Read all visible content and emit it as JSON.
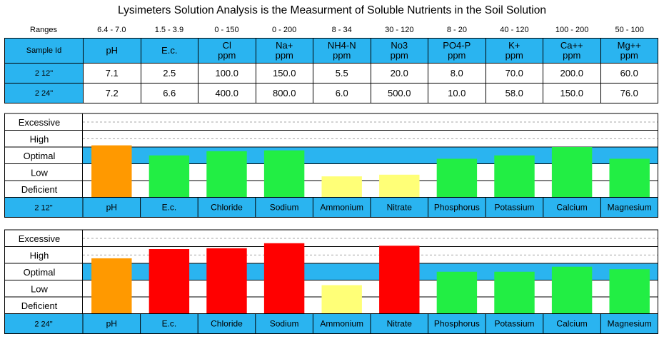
{
  "title": "Lysimeters Solution Analysis is the Measurment of Soluble Nutrients in the Soil Solution",
  "ranges_label": "Ranges",
  "sample_id_label": "Sample Id",
  "columns": [
    {
      "h1": "pH",
      "h2": "",
      "range": "6.4 - 7.0",
      "name": "pH"
    },
    {
      "h1": "E.c.",
      "h2": "",
      "range": "1.5 - 3.9",
      "name": "E.c."
    },
    {
      "h1": "Cl",
      "h2": "ppm",
      "range": "0 - 150",
      "name": "Chloride"
    },
    {
      "h1": "Na+",
      "h2": "ppm",
      "range": "0 - 200",
      "name": "Sodium"
    },
    {
      "h1": "NH4-N",
      "h2": "ppm",
      "range": "8 - 34",
      "name": "Ammonium"
    },
    {
      "h1": "No3",
      "h2": "ppm",
      "range": "30 - 120",
      "name": "Nitrate"
    },
    {
      "h1": "PO4-P",
      "h2": "ppm",
      "range": "8 - 20",
      "name": "Phosphorus"
    },
    {
      "h1": "K+",
      "h2": "ppm",
      "range": "40 - 120",
      "name": "Potassium"
    },
    {
      "h1": "Ca++",
      "h2": "ppm",
      "range": "100 - 200",
      "name": "Calcium"
    },
    {
      "h1": "Mg++",
      "h2": "ppm",
      "range": "50 - 100",
      "name": "Magnesium"
    }
  ],
  "samples": [
    {
      "id": "2 12\"",
      "values": [
        "7.1",
        "2.5",
        "100.0",
        "150.0",
        "5.5",
        "20.0",
        "8.0",
        "70.0",
        "200.0",
        "60.0"
      ]
    },
    {
      "id": "2 24\"",
      "values": [
        "7.2",
        "6.6",
        "400.0",
        "800.0",
        "6.0",
        "500.0",
        "10.0",
        "58.0",
        "150.0",
        "76.0"
      ]
    }
  ],
  "chart_data": [
    {
      "type": "bar",
      "sample": "2 12\"",
      "categories": [
        "pH",
        "E.c.",
        "Chloride",
        "Sodium",
        "Ammonium",
        "Nitrate",
        "Phosphorus",
        "Potassium",
        "Calcium",
        "Magnesium"
      ],
      "levels": [
        "Deficient",
        "Low",
        "Optimal",
        "High",
        "Excessive"
      ],
      "ylim": [
        0,
        5
      ],
      "values": [
        3.1,
        2.5,
        2.75,
        2.8,
        1.25,
        1.35,
        2.3,
        2.5,
        3.0,
        2.3
      ],
      "colors": [
        "#ff9900",
        "#22ee44",
        "#22ee44",
        "#22ee44",
        "#ffff77",
        "#ffff77",
        "#22ee44",
        "#22ee44",
        "#22ee44",
        "#22ee44"
      ]
    },
    {
      "type": "bar",
      "sample": "2 24\"",
      "categories": [
        "pH",
        "E.c.",
        "Chloride",
        "Sodium",
        "Ammonium",
        "Nitrate",
        "Phosphorus",
        "Potassium",
        "Calcium",
        "Magnesium"
      ],
      "levels": [
        "Deficient",
        "Low",
        "Optimal",
        "High",
        "Excessive"
      ],
      "ylim": [
        0,
        5
      ],
      "values": [
        3.3,
        3.85,
        3.9,
        4.2,
        1.7,
        4.05,
        2.5,
        2.5,
        2.8,
        2.65
      ],
      "colors": [
        "#ff9900",
        "#ff0000",
        "#ff0000",
        "#ff0000",
        "#ffff77",
        "#ff0000",
        "#22ee44",
        "#22ee44",
        "#22ee44",
        "#22ee44"
      ]
    }
  ],
  "colors": {
    "header_blue": "#2ab4f0",
    "optimal_band": "#2ab4f0"
  }
}
